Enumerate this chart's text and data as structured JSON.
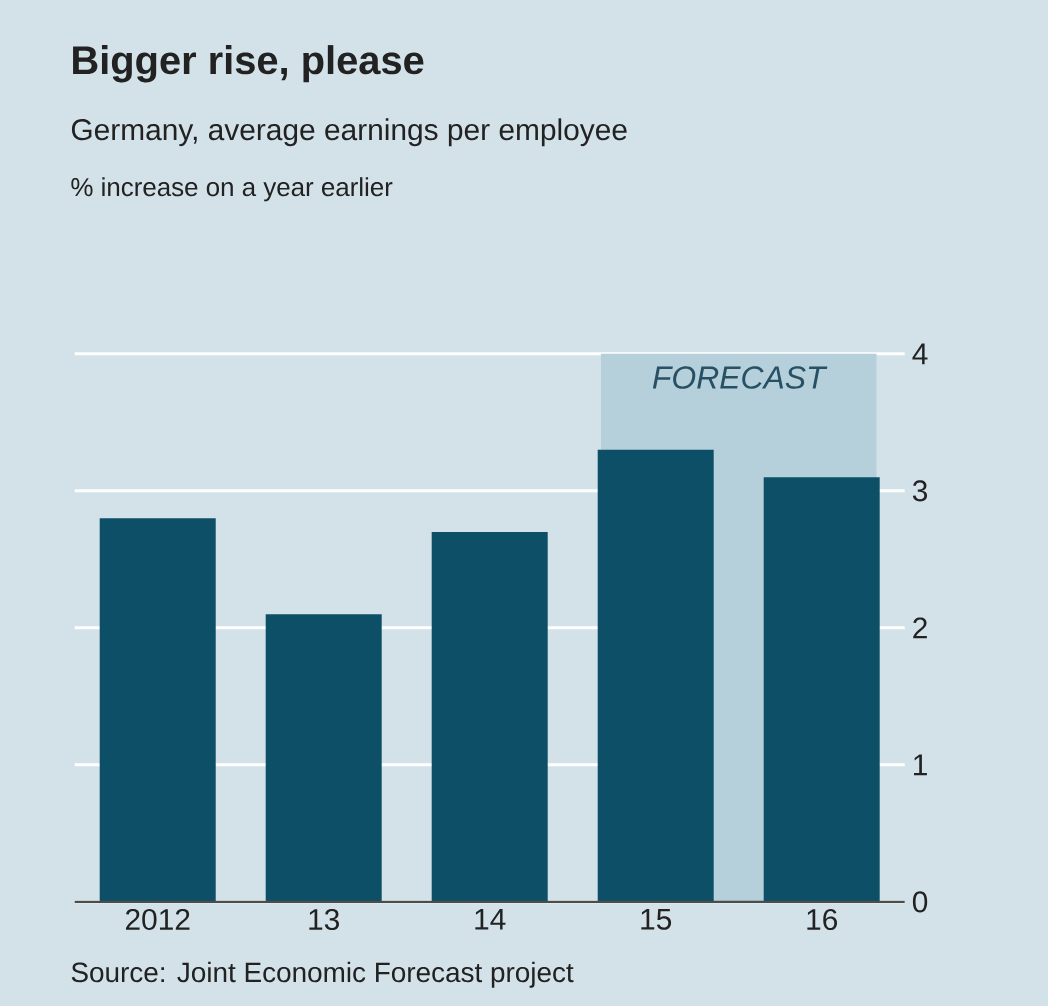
{
  "chart_data": {
    "type": "bar",
    "title": "Bigger rise, please",
    "subtitle": "Germany, average earnings per employee",
    "categories": [
      "2012",
      "13",
      "14",
      "15",
      "16"
    ],
    "values": [
      2.8,
      2.1,
      2.7,
      3.3,
      3.1
    ],
    "color": "#0d4f66",
    "ylim": [
      0,
      4
    ],
    "yticks": [
      0,
      1,
      2,
      3,
      4
    ],
    "grid": "y",
    "bands": [
      {
        "axis": "x",
        "from": "15",
        "to": "16",
        "label": "FORECAST",
        "color": "#b5cfdb"
      }
    ],
    "annotations": [
      "% increase on a year earlier",
      "Source: Joint Economic Forecast project"
    ]
  }
}
